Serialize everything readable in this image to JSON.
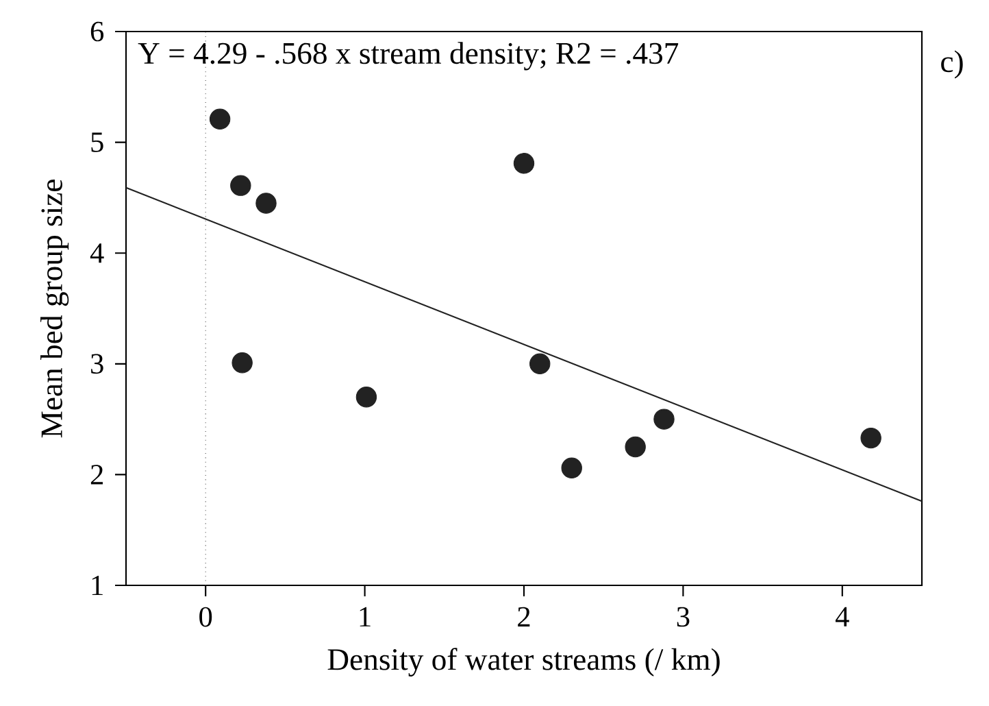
{
  "chart_data": {
    "type": "scatter",
    "xlabel": "Density of water streams (/ km)",
    "ylabel": "Mean bed group size",
    "annotations": [
      "Y = 4.29 - .568 x stream density; R2 = .437",
      "c)"
    ],
    "xlim": [
      -0.5,
      4.5
    ],
    "xticks": [
      0,
      1,
      2,
      3,
      4
    ],
    "ylim": [
      1,
      6
    ],
    "yticks": [
      1,
      2,
      3,
      4,
      5,
      6
    ],
    "series": [
      {
        "color": "#222222",
        "marker": "circle",
        "x": [
          0.09,
          0.22,
          0.38,
          0.23,
          1.01,
          2.0,
          2.1,
          2.3,
          2.7,
          2.88,
          4.18
        ],
        "values": [
          5.21,
          4.61,
          4.45,
          3.01,
          2.7,
          4.81,
          3.0,
          2.06,
          2.25,
          2.5,
          2.33
        ]
      },
      {
        "type": "line",
        "color": "#222222",
        "line_style": "solid",
        "x": [
          -0.5,
          4.5
        ],
        "values": [
          4.59,
          1.76
        ]
      }
    ],
    "ref_lines": [
      {
        "axis": "x",
        "value": 0,
        "line_style": "dotted",
        "color": "#444444"
      }
    ]
  }
}
